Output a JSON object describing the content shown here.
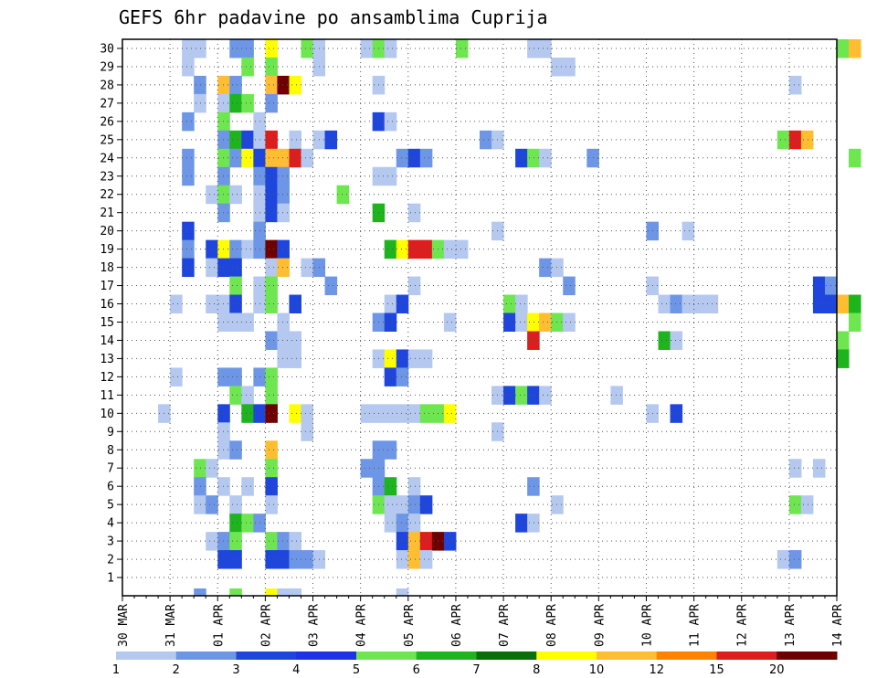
{
  "chart_data": {
    "type": "heatmap",
    "title": "GEFS 6hr padavine po ansamblima Cuprija",
    "xlabel": "",
    "ylabel": "",
    "x_ticks": [
      "30 MAR",
      "31 MAR",
      "01 APR",
      "02 APR",
      "03 APR",
      "04 APR",
      "05 APR",
      "06 APR",
      "07 APR",
      "08 APR",
      "09 APR",
      "10 APR",
      "11 APR",
      "12 APR",
      "13 APR",
      "14 APR"
    ],
    "x_steps_per_day": 4,
    "y_ticks": [
      1,
      2,
      3,
      4,
      5,
      6,
      7,
      8,
      9,
      10,
      11,
      12,
      13,
      14,
      15,
      16,
      17,
      18,
      19,
      20,
      21,
      22,
      23,
      24,
      25,
      26,
      27,
      28,
      29,
      30
    ],
    "grid": true,
    "legend": {
      "placement": "bottom",
      "labels": [
        "1",
        "2",
        "3",
        "4",
        "5",
        "6",
        "7",
        "8",
        "10",
        "12",
        "15",
        "20"
      ],
      "colors": [
        "#b4c8f0",
        "#6e96e6",
        "#1e46dc",
        "#1e32e6",
        "#6ee650",
        "#1eb41e",
        "#0a6e0a",
        "#ffff00",
        "#ffbe32",
        "#ff8200",
        "#dc1e1e",
        "#6e0000"
      ]
    },
    "cells": [
      [
        30,
        5,
        1
      ],
      [
        30,
        6,
        1
      ],
      [
        30,
        9,
        2
      ],
      [
        30,
        10,
        2
      ],
      [
        30,
        12,
        8
      ],
      [
        30,
        15,
        5
      ],
      [
        30,
        16,
        1
      ],
      [
        30,
        20,
        1
      ],
      [
        30,
        21,
        5
      ],
      [
        30,
        22,
        1
      ],
      [
        30,
        28,
        5
      ],
      [
        30,
        34,
        1
      ],
      [
        30,
        35,
        1
      ],
      [
        30,
        60,
        5
      ],
      [
        30,
        61,
        10
      ],
      [
        29,
        5,
        1
      ],
      [
        29,
        10,
        5
      ],
      [
        29,
        12,
        5
      ],
      [
        29,
        16,
        1
      ],
      [
        29,
        36,
        1
      ],
      [
        29,
        37,
        1
      ],
      [
        28,
        6,
        2
      ],
      [
        28,
        8,
        10
      ],
      [
        28,
        9,
        2
      ],
      [
        28,
        12,
        10
      ],
      [
        28,
        13,
        20
      ],
      [
        28,
        14,
        8
      ],
      [
        28,
        21,
        1
      ],
      [
        28,
        56,
        1
      ],
      [
        27,
        6,
        1
      ],
      [
        27,
        8,
        1
      ],
      [
        27,
        9,
        6
      ],
      [
        27,
        10,
        5
      ],
      [
        27,
        12,
        2
      ],
      [
        26,
        5,
        2
      ],
      [
        26,
        8,
        5
      ],
      [
        26,
        11,
        1
      ],
      [
        26,
        21,
        3
      ],
      [
        26,
        22,
        1
      ],
      [
        25,
        8,
        2
      ],
      [
        25,
        9,
        6
      ],
      [
        25,
        10,
        3
      ],
      [
        25,
        11,
        1
      ],
      [
        25,
        12,
        15
      ],
      [
        25,
        14,
        1
      ],
      [
        25,
        16,
        1
      ],
      [
        25,
        17,
        3
      ],
      [
        25,
        30,
        2
      ],
      [
        25,
        31,
        1
      ],
      [
        25,
        55,
        5
      ],
      [
        25,
        56,
        15
      ],
      [
        25,
        57,
        10
      ],
      [
        24,
        5,
        2
      ],
      [
        24,
        8,
        5
      ],
      [
        24,
        9,
        2
      ],
      [
        24,
        10,
        8
      ],
      [
        24,
        11,
        3
      ],
      [
        24,
        12,
        10
      ],
      [
        24,
        13,
        10
      ],
      [
        24,
        14,
        15
      ],
      [
        24,
        15,
        1
      ],
      [
        24,
        23,
        2
      ],
      [
        24,
        24,
        3
      ],
      [
        24,
        25,
        2
      ],
      [
        24,
        33,
        3
      ],
      [
        24,
        34,
        5
      ],
      [
        24,
        35,
        1
      ],
      [
        24,
        39,
        2
      ],
      [
        24,
        61,
        5
      ],
      [
        23,
        5,
        2
      ],
      [
        23,
        8,
        2
      ],
      [
        23,
        11,
        2
      ],
      [
        23,
        12,
        3
      ],
      [
        23,
        13,
        2
      ],
      [
        23,
        21,
        1
      ],
      [
        23,
        22,
        1
      ],
      [
        22,
        7,
        1
      ],
      [
        22,
        8,
        5
      ],
      [
        22,
        9,
        1
      ],
      [
        22,
        11,
        1
      ],
      [
        22,
        12,
        3
      ],
      [
        22,
        13,
        2
      ],
      [
        22,
        18,
        5
      ],
      [
        21,
        8,
        2
      ],
      [
        21,
        11,
        1
      ],
      [
        21,
        12,
        3
      ],
      [
        21,
        13,
        1
      ],
      [
        21,
        21,
        6
      ],
      [
        21,
        24,
        1
      ],
      [
        20,
        5,
        3
      ],
      [
        20,
        11,
        2
      ],
      [
        20,
        31,
        1
      ],
      [
        20,
        44,
        2
      ],
      [
        20,
        47,
        1
      ],
      [
        19,
        5,
        2
      ],
      [
        19,
        7,
        3
      ],
      [
        19,
        8,
        8
      ],
      [
        19,
        9,
        2
      ],
      [
        19,
        10,
        1
      ],
      [
        19,
        11,
        2
      ],
      [
        19,
        12,
        20
      ],
      [
        19,
        13,
        3
      ],
      [
        19,
        22,
        6
      ],
      [
        19,
        23,
        8
      ],
      [
        19,
        24,
        15
      ],
      [
        19,
        25,
        15
      ],
      [
        19,
        26,
        5
      ],
      [
        19,
        27,
        1
      ],
      [
        19,
        28,
        1
      ],
      [
        18,
        5,
        3
      ],
      [
        18,
        7,
        1
      ],
      [
        18,
        8,
        3
      ],
      [
        18,
        9,
        3
      ],
      [
        18,
        12,
        1
      ],
      [
        18,
        13,
        10
      ],
      [
        18,
        15,
        1
      ],
      [
        18,
        16,
        2
      ],
      [
        18,
        35,
        2
      ],
      [
        18,
        36,
        1
      ],
      [
        17,
        9,
        5
      ],
      [
        17,
        11,
        1
      ],
      [
        17,
        12,
        5
      ],
      [
        17,
        17,
        2
      ],
      [
        17,
        24,
        1
      ],
      [
        17,
        37,
        2
      ],
      [
        17,
        44,
        1
      ],
      [
        17,
        58,
        3
      ],
      [
        17,
        59,
        2
      ],
      [
        16,
        4,
        1
      ],
      [
        16,
        7,
        1
      ],
      [
        16,
        8,
        1
      ],
      [
        16,
        9,
        3
      ],
      [
        16,
        11,
        1
      ],
      [
        16,
        12,
        5
      ],
      [
        16,
        14,
        3
      ],
      [
        16,
        22,
        1
      ],
      [
        16,
        23,
        3
      ],
      [
        16,
        32,
        5
      ],
      [
        16,
        33,
        1
      ],
      [
        16,
        45,
        1
      ],
      [
        16,
        46,
        2
      ],
      [
        16,
        47,
        1
      ],
      [
        16,
        48,
        1
      ],
      [
        16,
        49,
        1
      ],
      [
        16,
        58,
        3
      ],
      [
        16,
        59,
        3
      ],
      [
        16,
        60,
        10
      ],
      [
        16,
        61,
        6
      ],
      [
        15,
        8,
        1
      ],
      [
        15,
        9,
        1
      ],
      [
        15,
        10,
        1
      ],
      [
        15,
        13,
        1
      ],
      [
        15,
        21,
        2
      ],
      [
        15,
        22,
        3
      ],
      [
        15,
        27,
        1
      ],
      [
        15,
        32,
        3
      ],
      [
        15,
        33,
        1
      ],
      [
        15,
        34,
        8
      ],
      [
        15,
        35,
        10
      ],
      [
        15,
        36,
        5
      ],
      [
        15,
        37,
        1
      ],
      [
        15,
        61,
        5
      ],
      [
        14,
        12,
        2
      ],
      [
        14,
        13,
        1
      ],
      [
        14,
        14,
        1
      ],
      [
        14,
        34,
        15
      ],
      [
        14,
        45,
        6
      ],
      [
        14,
        46,
        1
      ],
      [
        14,
        60,
        5
      ],
      [
        13,
        13,
        1
      ],
      [
        13,
        14,
        1
      ],
      [
        13,
        21,
        1
      ],
      [
        13,
        22,
        8
      ],
      [
        13,
        23,
        3
      ],
      [
        13,
        24,
        1
      ],
      [
        13,
        25,
        1
      ],
      [
        13,
        60,
        6
      ],
      [
        12,
        4,
        1
      ],
      [
        12,
        8,
        2
      ],
      [
        12,
        9,
        2
      ],
      [
        12,
        11,
        2
      ],
      [
        12,
        12,
        5
      ],
      [
        12,
        22,
        3
      ],
      [
        12,
        23,
        2
      ],
      [
        11,
        9,
        5
      ],
      [
        11,
        10,
        1
      ],
      [
        11,
        12,
        5
      ],
      [
        11,
        31,
        1
      ],
      [
        11,
        32,
        3
      ],
      [
        11,
        33,
        5
      ],
      [
        11,
        34,
        3
      ],
      [
        11,
        35,
        1
      ],
      [
        11,
        41,
        1
      ],
      [
        10,
        3,
        1
      ],
      [
        10,
        8,
        3
      ],
      [
        10,
        10,
        6
      ],
      [
        10,
        11,
        3
      ],
      [
        10,
        12,
        20
      ],
      [
        10,
        14,
        8
      ],
      [
        10,
        15,
        1
      ],
      [
        10,
        20,
        1
      ],
      [
        10,
        21,
        1
      ],
      [
        10,
        22,
        1
      ],
      [
        10,
        23,
        1
      ],
      [
        10,
        24,
        1
      ],
      [
        10,
        25,
        5
      ],
      [
        10,
        26,
        5
      ],
      [
        10,
        27,
        8
      ],
      [
        10,
        44,
        1
      ],
      [
        10,
        46,
        3
      ],
      [
        9,
        8,
        1
      ],
      [
        9,
        15,
        1
      ],
      [
        9,
        31,
        1
      ],
      [
        8,
        8,
        1
      ],
      [
        8,
        9,
        2
      ],
      [
        8,
        12,
        10
      ],
      [
        8,
        21,
        2
      ],
      [
        8,
        22,
        2
      ],
      [
        7,
        6,
        5
      ],
      [
        7,
        7,
        1
      ],
      [
        7,
        12,
        5
      ],
      [
        7,
        20,
        2
      ],
      [
        7,
        21,
        2
      ],
      [
        7,
        56,
        1
      ],
      [
        7,
        58,
        1
      ],
      [
        6,
        6,
        2
      ],
      [
        6,
        8,
        1
      ],
      [
        6,
        10,
        1
      ],
      [
        6,
        12,
        3
      ],
      [
        6,
        21,
        2
      ],
      [
        6,
        22,
        6
      ],
      [
        6,
        24,
        1
      ],
      [
        6,
        34,
        2
      ],
      [
        5,
        6,
        1
      ],
      [
        5,
        7,
        2
      ],
      [
        5,
        9,
        1
      ],
      [
        5,
        12,
        1
      ],
      [
        5,
        21,
        5
      ],
      [
        5,
        22,
        1
      ],
      [
        5,
        23,
        1
      ],
      [
        5,
        24,
        2
      ],
      [
        5,
        25,
        3
      ],
      [
        5,
        36,
        1
      ],
      [
        5,
        56,
        5
      ],
      [
        5,
        57,
        1
      ],
      [
        4,
        9,
        6
      ],
      [
        4,
        10,
        5
      ],
      [
        4,
        11,
        2
      ],
      [
        4,
        22,
        1
      ],
      [
        4,
        23,
        2
      ],
      [
        4,
        24,
        1
      ],
      [
        4,
        33,
        3
      ],
      [
        4,
        34,
        1
      ],
      [
        3,
        7,
        1
      ],
      [
        3,
        8,
        2
      ],
      [
        3,
        9,
        5
      ],
      [
        3,
        12,
        5
      ],
      [
        3,
        13,
        2
      ],
      [
        3,
        14,
        1
      ],
      [
        3,
        23,
        3
      ],
      [
        3,
        24,
        10
      ],
      [
        3,
        25,
        15
      ],
      [
        3,
        26,
        20
      ],
      [
        3,
        27,
        3
      ],
      [
        2,
        8,
        3
      ],
      [
        2,
        9,
        3
      ],
      [
        2,
        12,
        3
      ],
      [
        2,
        13,
        3
      ],
      [
        2,
        14,
        2
      ],
      [
        2,
        15,
        2
      ],
      [
        2,
        16,
        1
      ],
      [
        2,
        23,
        1
      ],
      [
        2,
        24,
        10
      ],
      [
        2,
        25,
        1
      ],
      [
        2,
        55,
        1
      ],
      [
        2,
        56,
        2
      ]
    ],
    "bottom_edge_cells": [
      [
        6,
        2
      ],
      [
        9,
        5
      ],
      [
        12,
        8
      ],
      [
        13,
        1
      ],
      [
        14,
        1
      ],
      [
        23,
        1
      ]
    ]
  }
}
